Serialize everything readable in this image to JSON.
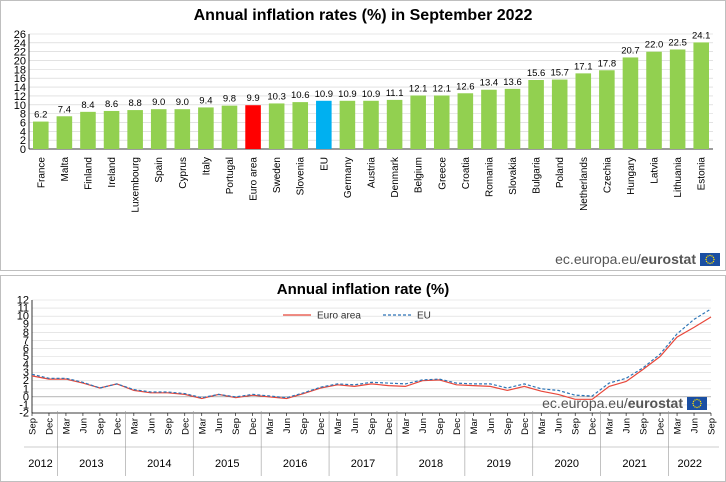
{
  "source": {
    "prefix": "ec.europa.eu/",
    "brand": "eurostat",
    "flag_color": "#1a4fa3"
  },
  "chart_data": [
    {
      "type": "bar",
      "title": "Annual inflation rates (%) in September 2022",
      "xlabel": "",
      "ylabel": "",
      "ylim": [
        0,
        26
      ],
      "yticks": [
        0,
        2,
        4,
        6,
        8,
        10,
        12,
        14,
        16,
        18,
        20,
        22,
        24,
        26
      ],
      "grid": true,
      "categories": [
        "France",
        "Malta",
        "Finland",
        "Ireland",
        "Luxembourg",
        "Spain",
        "Cyprus",
        "Italy",
        "Portugal",
        "Euro area",
        "Sweden",
        "Slovenia",
        "EU",
        "Germany",
        "Austria",
        "Denmark",
        "Belgium",
        "Greece",
        "Croatia",
        "Romania",
        "Slovakia",
        "Bulgaria",
        "Poland",
        "Netherlands",
        "Czechia",
        "Hungary",
        "Latvia",
        "Lithuania",
        "Estonia"
      ],
      "values": [
        6.2,
        7.4,
        8.4,
        8.6,
        8.8,
        9.0,
        9.0,
        9.4,
        9.8,
        9.9,
        10.3,
        10.6,
        10.9,
        10.9,
        10.9,
        11.1,
        12.1,
        12.1,
        12.6,
        13.4,
        13.6,
        15.6,
        15.7,
        17.1,
        17.8,
        20.7,
        22.0,
        22.5,
        24.1
      ],
      "value_labels": [
        "6.2",
        "7.4",
        "8.4",
        "8.6",
        "8.8",
        "9.0",
        "9.0",
        "9.4",
        "9.8",
        "9.9",
        "10.3",
        "10.6",
        "10.9",
        "10.9",
        "10.9",
        "11.1",
        "12.1",
        "12.1",
        "12.6",
        "13.4",
        "13.6",
        "15.6",
        "15.7",
        "17.1",
        "17.8",
        "20.7",
        "22.0",
        "22.5",
        "24.1"
      ],
      "colors": {
        "default": "#92d050",
        "Euro area": "#ff0000",
        "EU": "#00b0f0"
      }
    },
    {
      "type": "line",
      "title": "Annual inflation rate (%)",
      "xlabel": "",
      "ylabel": "",
      "ylim": [
        -2,
        12
      ],
      "yticks": [
        -2,
        -1,
        0,
        1,
        2,
        3,
        4,
        5,
        6,
        7,
        8,
        9,
        10,
        11,
        12
      ],
      "grid": true,
      "legend": "top-center",
      "x_month_labels": [
        "Sep",
        "Dec",
        "Mar",
        "Jun",
        "Sep",
        "Dec",
        "Mar",
        "Jun",
        "Sep",
        "Dec",
        "Mar",
        "Jun",
        "Sep",
        "Dec",
        "Mar",
        "Jun",
        "Sep",
        "Dec",
        "Mar",
        "Jun",
        "Sep",
        "Dec",
        "Mar",
        "Jun",
        "Sep",
        "Dec",
        "Mar",
        "Jun",
        "Sep",
        "Dec",
        "Mar",
        "Jun",
        "Sep",
        "Dec",
        "Mar",
        "Jun",
        "Sep",
        "Dec",
        "Mar",
        "Jun",
        "Sep"
      ],
      "years": [
        "2012",
        "2013",
        "2014",
        "2015",
        "2016",
        "2017",
        "2018",
        "2019",
        "2020",
        "2021",
        "2022"
      ],
      "series": [
        {
          "name": "Euro area",
          "color": "#e8473a",
          "dash": "solid",
          "values": [
            2.6,
            2.2,
            2.2,
            1.7,
            1.1,
            1.6,
            0.8,
            0.5,
            0.5,
            0.3,
            -0.2,
            0.3,
            -0.1,
            0.2,
            0.0,
            -0.2,
            0.4,
            1.1,
            1.5,
            1.3,
            1.6,
            1.4,
            1.3,
            2.0,
            2.1,
            1.5,
            1.4,
            1.3,
            0.8,
            1.3,
            0.7,
            0.3,
            -0.3,
            -0.3,
            1.3,
            1.9,
            3.4,
            5.0,
            7.4,
            8.6,
            9.9
          ]
        },
        {
          "name": "EU",
          "color": "#2e75b6",
          "dash": "dashed",
          "values": [
            2.8,
            2.3,
            2.3,
            1.8,
            1.1,
            1.6,
            0.9,
            0.6,
            0.6,
            0.4,
            -0.1,
            0.3,
            0.0,
            0.3,
            0.1,
            -0.1,
            0.5,
            1.2,
            1.6,
            1.5,
            1.8,
            1.7,
            1.6,
            2.1,
            2.2,
            1.7,
            1.6,
            1.6,
            1.1,
            1.6,
            1.0,
            0.8,
            0.2,
            0.1,
            1.7,
            2.3,
            3.6,
            5.3,
            7.8,
            9.6,
            10.9
          ]
        }
      ]
    }
  ]
}
